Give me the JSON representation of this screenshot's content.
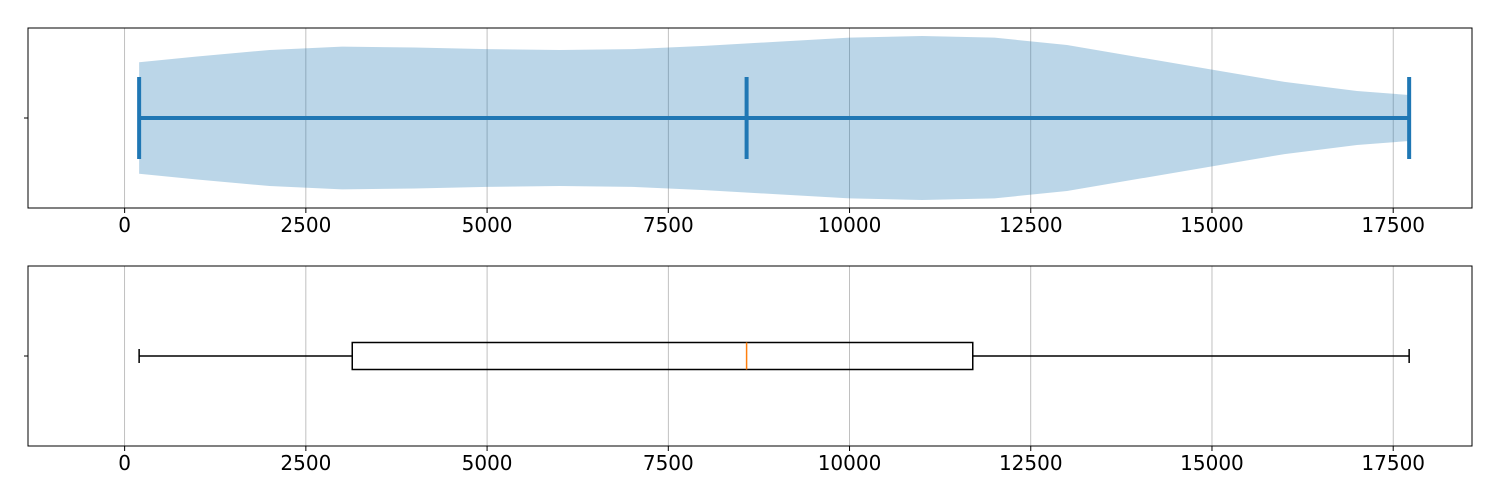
{
  "chart_data": [
    {
      "type": "violin",
      "orientation": "horizontal",
      "title": "",
      "xlabel": "",
      "ylabel": "",
      "xlim": [
        -1333,
        18587
      ],
      "xticks": [
        0,
        2500,
        5000,
        7500,
        10000,
        12500,
        15000,
        17500
      ],
      "xtick_labels": [
        "0",
        "2500",
        "5000",
        "7500",
        "10000",
        "12500",
        "15000",
        "17500"
      ],
      "grid": "x",
      "stats": {
        "min": 200,
        "median": 8580,
        "max": 17720
      },
      "density_profile": [
        {
          "x": 200,
          "density": 0.68
        },
        {
          "x": 1000,
          "density": 0.75
        },
        {
          "x": 2000,
          "density": 0.83
        },
        {
          "x": 3000,
          "density": 0.87
        },
        {
          "x": 4000,
          "density": 0.86
        },
        {
          "x": 5000,
          "density": 0.84
        },
        {
          "x": 6000,
          "density": 0.83
        },
        {
          "x": 7000,
          "density": 0.84
        },
        {
          "x": 8000,
          "density": 0.88
        },
        {
          "x": 9000,
          "density": 0.93
        },
        {
          "x": 10000,
          "density": 0.98
        },
        {
          "x": 11000,
          "density": 1.0
        },
        {
          "x": 12000,
          "density": 0.98
        },
        {
          "x": 13000,
          "density": 0.89
        },
        {
          "x": 14000,
          "density": 0.74
        },
        {
          "x": 15000,
          "density": 0.59
        },
        {
          "x": 16000,
          "density": 0.44
        },
        {
          "x": 17000,
          "density": 0.33
        },
        {
          "x": 17720,
          "density": 0.28
        }
      ],
      "colors": {
        "fill": "#1f77b4",
        "fill_opacity": 0.3,
        "stat_lines": "#1f77b4"
      }
    },
    {
      "type": "box",
      "orientation": "horizontal",
      "title": "",
      "xlabel": "",
      "ylabel": "",
      "xlim": [
        -1333,
        18587
      ],
      "xticks": [
        0,
        2500,
        5000,
        7500,
        10000,
        12500,
        15000,
        17500
      ],
      "xtick_labels": [
        "0",
        "2500",
        "5000",
        "7500",
        "10000",
        "12500",
        "15000",
        "17500"
      ],
      "grid": "x",
      "stats": {
        "whisker_low": 200,
        "q1": 3140,
        "median": 8580,
        "q3": 11700,
        "whisker_high": 17720
      },
      "colors": {
        "box": "#000000",
        "median": "#ff7f0e",
        "whisker": "#000000"
      }
    }
  ]
}
